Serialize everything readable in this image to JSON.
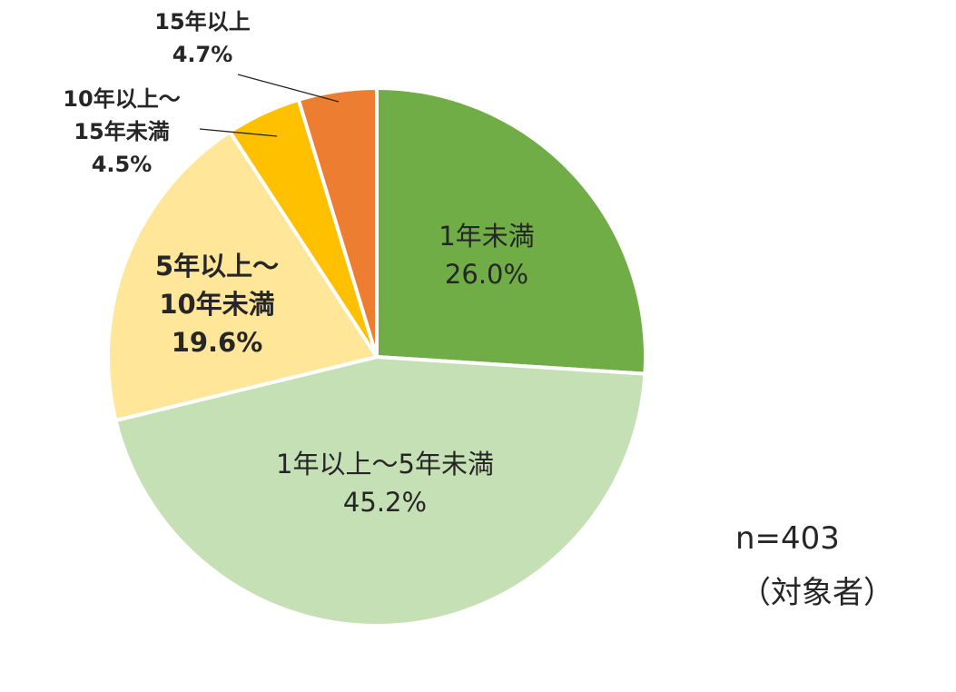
{
  "chart_data": {
    "type": "pie",
    "slices": [
      {
        "label_lines": [
          "1年未満"
        ],
        "value": 26.0,
        "value_label": "26.0%",
        "color": "#70AD47"
      },
      {
        "label_lines": [
          "1年以上～5年未満"
        ],
        "value": 45.2,
        "value_label": "45.2%",
        "color": "#C5E0B4"
      },
      {
        "label_lines": [
          "5年以上～",
          "10年未満"
        ],
        "value": 19.6,
        "value_label": "19.6%",
        "color": "#FFE699"
      },
      {
        "label_lines": [
          "10年以上～",
          "15年未満"
        ],
        "value": 4.5,
        "value_label": "4.5%",
        "color": "#FFC000"
      },
      {
        "label_lines": [
          "15年以上"
        ],
        "value": 4.7,
        "value_label": "4.7%",
        "color": "#ED7D31"
      }
    ],
    "start": "12 o'clock",
    "direction": "clockwise",
    "slice_border_color": "#FFFFFF",
    "leader_line_color": "#262626"
  },
  "note": {
    "sample_size": "n=403",
    "target": "（対象者）"
  }
}
